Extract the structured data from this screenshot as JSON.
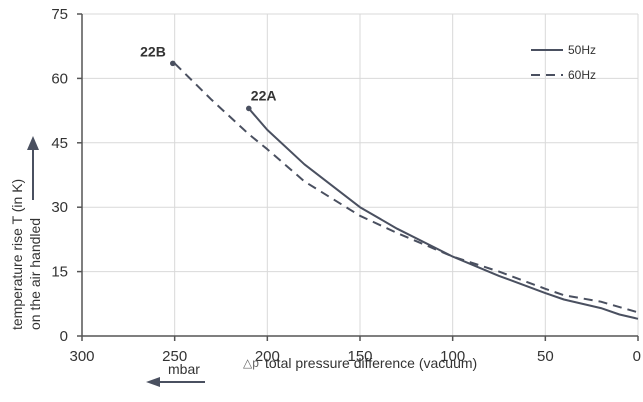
{
  "chart_data": {
    "type": "line",
    "xlabel": "total pressure difference (vacuum)",
    "x_symbol": "△p",
    "x_unit": "mbar",
    "ylabel_line1": "temperature rise T (in K)",
    "ylabel_line2": "on the air handled",
    "xlim": [
      300,
      0
    ],
    "ylim": [
      0,
      75
    ],
    "x_ticks": [
      300,
      250,
      200,
      150,
      100,
      50,
      0
    ],
    "y_ticks": [
      0,
      15,
      30,
      45,
      60,
      75
    ],
    "grid": true,
    "legend_position": "top-right",
    "series": [
      {
        "name": "50Hz",
        "style": "solid",
        "color": "#4a5060",
        "x": [
          210,
          200,
          180,
          150,
          130,
          100,
          75,
          50,
          40,
          20,
          10,
          0
        ],
        "y": [
          53,
          48,
          40,
          30,
          25,
          18.5,
          14,
          10,
          8.5,
          6.5,
          5,
          4
        ]
      },
      {
        "name": "60Hz",
        "style": "dashed",
        "color": "#4a5060",
        "x": [
          250,
          230,
          210,
          200,
          180,
          150,
          130,
          100,
          75,
          50,
          40,
          20,
          0
        ],
        "y": [
          63.5,
          55,
          47,
          43.5,
          36,
          28,
          24,
          18.5,
          15,
          11,
          9.5,
          8,
          5.5
        ]
      }
    ],
    "annotations": [
      {
        "text": "22B",
        "x": 251,
        "y": 63.5
      },
      {
        "text": "22A",
        "x": 210,
        "y": 53
      }
    ]
  }
}
